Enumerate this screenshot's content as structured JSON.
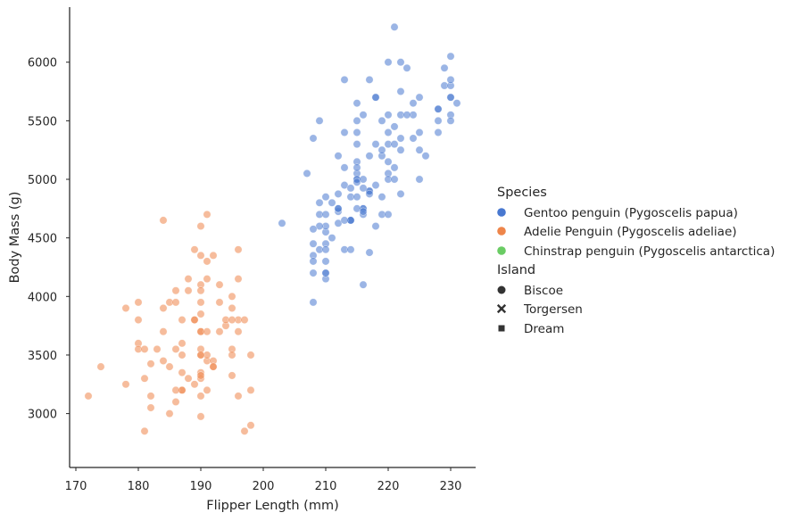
{
  "chart_data": {
    "type": "scatter",
    "xlabel": "Flipper Length (mm)",
    "ylabel": "Body Mass (g)",
    "xlim": [
      169,
      234
    ],
    "ylim": [
      2540,
      6470
    ],
    "xticks": [
      170,
      180,
      190,
      200,
      210,
      220,
      230
    ],
    "yticks": [
      3000,
      3500,
      4000,
      4500,
      5000,
      5500,
      6000
    ],
    "grid": false,
    "legend_position": "right",
    "legend": {
      "hue_title": "Species",
      "style_title": "Island",
      "species": [
        {
          "name": "Gentoo penguin (Pygoscelis papua)",
          "color": "#4878d0"
        },
        {
          "name": "Adelie Penguin (Pygoscelis adeliae)",
          "color": "#ee854a"
        },
        {
          "name": "Chinstrap penguin (Pygoscelis antarctica)",
          "color": "#6acc64"
        }
      ],
      "islands": [
        {
          "name": "Biscoe",
          "marker": "circle"
        },
        {
          "name": "Torgersen",
          "marker": "x"
        },
        {
          "name": "Dream",
          "marker": "square"
        }
      ]
    },
    "series": [
      {
        "species": "Gentoo penguin (Pygoscelis papua)",
        "island": "Biscoe",
        "points": [
          [
            211,
            4500
          ],
          [
            230,
            5700
          ],
          [
            210,
            4450
          ],
          [
            218,
            5700
          ],
          [
            215,
            5400
          ],
          [
            210,
            4550
          ],
          [
            211,
            4800
          ],
          [
            219,
            5200
          ],
          [
            209,
            4400
          ],
          [
            215,
            5150
          ],
          [
            214,
            4650
          ],
          [
            216,
            5550
          ],
          [
            214,
            4650
          ],
          [
            213,
            5850
          ],
          [
            210,
            4200
          ],
          [
            217,
            5850
          ],
          [
            210,
            4150
          ],
          [
            221,
            6300
          ],
          [
            209,
            4800
          ],
          [
            222,
            5350
          ],
          [
            218,
            5700
          ],
          [
            215,
            5000
          ],
          [
            213,
            4400
          ],
          [
            215,
            5050
          ],
          [
            215,
            5000
          ],
          [
            215,
            5100
          ],
          [
            216,
            4100
          ],
          [
            215,
            5650
          ],
          [
            210,
            4600
          ],
          [
            220,
            5550
          ],
          [
            222,
            5250
          ],
          [
            209,
            4700
          ],
          [
            207,
            5050
          ],
          [
            230,
            6050
          ],
          [
            220,
            5150
          ],
          [
            220,
            5400
          ],
          [
            213,
            4950
          ],
          [
            219,
            5250
          ],
          [
            208,
            4350
          ],
          [
            208,
            5350
          ],
          [
            208,
            3950
          ],
          [
            225,
            5700
          ],
          [
            210,
            4300
          ],
          [
            216,
            4750
          ],
          [
            222,
            5550
          ],
          [
            217,
            4900
          ],
          [
            210,
            4200
          ],
          [
            225,
            5400
          ],
          [
            213,
            5100
          ],
          [
            215,
            5300
          ],
          [
            210,
            4850
          ],
          [
            220,
            5300
          ],
          [
            210,
            4400
          ],
          [
            225,
            5000
          ],
          [
            217,
            4900
          ],
          [
            220,
            5050
          ],
          [
            208,
            4300
          ],
          [
            220,
            5000
          ],
          [
            208,
            4450
          ],
          [
            224,
            5550
          ],
          [
            208,
            4200
          ],
          [
            221,
            5300
          ],
          [
            214,
            4400
          ],
          [
            231,
            5650
          ],
          [
            219,
            4700
          ],
          [
            230,
            5700
          ],
          [
            214,
            4650
          ],
          [
            229,
            5800
          ],
          [
            220,
            4700
          ],
          [
            223,
            5550
          ],
          [
            216,
            4750
          ],
          [
            221,
            5000
          ],
          [
            221,
            5100
          ],
          [
            217,
            5200
          ],
          [
            216,
            4700
          ],
          [
            230,
            5800
          ],
          [
            209,
            4600
          ],
          [
            220,
            6000
          ],
          [
            215,
            4750
          ],
          [
            223,
            5950
          ],
          [
            212,
            4625
          ],
          [
            221,
            5450
          ],
          [
            212,
            4725
          ],
          [
            224,
            5350
          ],
          [
            212,
            4750
          ],
          [
            228,
            5600
          ],
          [
            218,
            4600
          ],
          [
            218,
            5300
          ],
          [
            212,
            4875
          ],
          [
            230,
            5550
          ],
          [
            218,
            4950
          ],
          [
            228,
            5400
          ],
          [
            212,
            4750
          ],
          [
            224,
            5650
          ],
          [
            214,
            4850
          ],
          [
            226,
            5200
          ],
          [
            216,
            4925
          ],
          [
            222,
            4875
          ],
          [
            203,
            4625
          ],
          [
            225,
            5250
          ],
          [
            219,
            4850
          ],
          [
            228,
            5600
          ],
          [
            215,
            4975
          ],
          [
            228,
            5500
          ],
          [
            216,
            4725
          ],
          [
            215,
            5500
          ],
          [
            210,
            4700
          ],
          [
            219,
            5500
          ],
          [
            208,
            4575
          ],
          [
            209,
            5500
          ],
          [
            216,
            5000
          ],
          [
            229,
            5950
          ],
          [
            213,
            4650
          ],
          [
            230,
            5500
          ],
          [
            217,
            4375
          ],
          [
            230,
            5850
          ],
          [
            217,
            4875
          ],
          [
            222,
            6000
          ],
          [
            214,
            4925
          ],
          [
            215,
            4850
          ],
          [
            222,
            5750
          ],
          [
            212,
            5200
          ],
          [
            213,
            5400
          ]
        ]
      },
      {
        "species": "Adelie Penguin (Pygoscelis adeliae)",
        "island": "Biscoe",
        "points": [
          [
            174,
            3400
          ],
          [
            180,
            3600
          ],
          [
            189,
            3800
          ],
          [
            185,
            3950
          ],
          [
            180,
            3800
          ],
          [
            187,
            3800
          ],
          [
            183,
            3550
          ],
          [
            187,
            3200
          ],
          [
            172,
            3150
          ],
          [
            180,
            3950
          ],
          [
            178,
            3250
          ],
          [
            178,
            3900
          ],
          [
            188,
            3300
          ],
          [
            184,
            3900
          ],
          [
            195,
            3325
          ],
          [
            196,
            4150
          ],
          [
            190,
            3950
          ],
          [
            180,
            3550
          ],
          [
            181,
            3300
          ],
          [
            184,
            4650
          ],
          [
            182,
            3150
          ],
          [
            195,
            3900
          ],
          [
            186,
            3100
          ],
          [
            196,
            4400
          ],
          [
            185,
            3000
          ],
          [
            190,
            4600
          ],
          [
            182,
            3425
          ],
          [
            190,
            2975
          ],
          [
            191,
            3450
          ],
          [
            188,
            4150
          ],
          [
            190,
            3500
          ],
          [
            191,
            4300
          ],
          [
            192,
            3450
          ],
          [
            188,
            4050
          ],
          [
            198,
            2900
          ],
          [
            190,
            3700
          ],
          [
            190,
            3550
          ],
          [
            196,
            3800
          ],
          [
            197,
            2850
          ],
          [
            194,
            3750
          ],
          [
            190,
            3150
          ],
          [
            189,
            4400
          ],
          [
            187,
            3600
          ],
          [
            186,
            4050
          ],
          [
            181,
            2850
          ],
          [
            186,
            3950
          ],
          [
            181,
            3550
          ],
          [
            191,
            4700
          ],
          [
            184,
            3700
          ],
          [
            193,
            3950
          ],
          [
            195,
            3550
          ],
          [
            191,
            3200
          ],
          [
            190,
            3700
          ],
          [
            197,
            3800
          ],
          [
            190,
            3350
          ],
          [
            191,
            4150
          ],
          [
            192,
            3400
          ],
          [
            189,
            3800
          ],
          [
            184,
            3450
          ],
          [
            196,
            3700
          ],
          [
            187,
            3500
          ],
          [
            186,
            3550
          ],
          [
            185,
            3400
          ],
          [
            194,
            3800
          ],
          [
            182,
            3050
          ],
          [
            190,
            4100
          ],
          [
            187,
            3200
          ],
          [
            190,
            3300
          ],
          [
            187,
            3350
          ],
          [
            196,
            3150
          ],
          [
            190,
            3850
          ],
          [
            191,
            3500
          ],
          [
            193,
            3700
          ],
          [
            195,
            3500
          ],
          [
            192,
            3400
          ],
          [
            186,
            3200
          ],
          [
            190,
            4050
          ],
          [
            198,
            3500
          ],
          [
            190,
            4350
          ],
          [
            195,
            3800
          ],
          [
            191,
            3700
          ],
          [
            198,
            3200
          ],
          [
            195,
            4000
          ],
          [
            192,
            4350
          ],
          [
            189,
            3250
          ],
          [
            193,
            4100
          ],
          [
            190,
            3325
          ],
          [
            190,
            3500
          ]
        ]
      }
    ]
  }
}
